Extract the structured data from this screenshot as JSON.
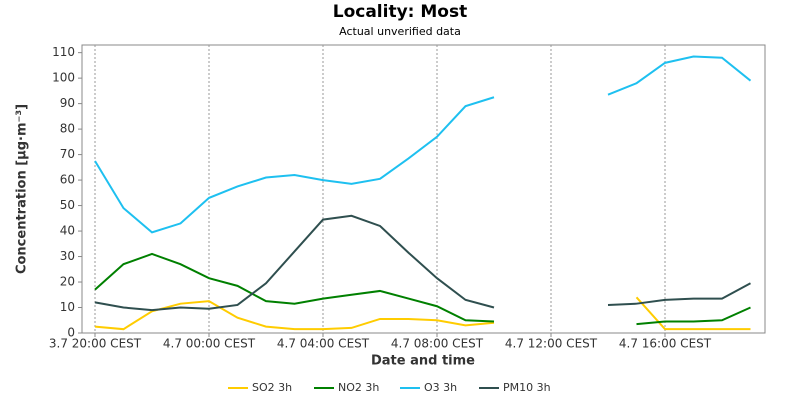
{
  "chart_data": {
    "type": "line",
    "title": "Locality: Most",
    "subtitle": "Actual unverified data",
    "x_label": "Date and time",
    "y_label": "Concentration [µg·m⁻³]",
    "categories": [
      "3.7 20:00 CEST",
      null,
      null,
      null,
      "4.7 00:00 CEST",
      null,
      null,
      null,
      "4.7 04:00 CEST",
      null,
      null,
      null,
      "4.7 08:00 CEST",
      null,
      null,
      null,
      "4.7 12:00 CEST",
      null,
      null,
      null,
      "4.7 16:00 CEST",
      null,
      null,
      null
    ],
    "series": [
      {
        "name": "SO2 3h",
        "color": "#ffcc00",
        "values": [
          2.5,
          1.5,
          8.5,
          11.5,
          12.5,
          6,
          2.5,
          1.5,
          1.5,
          2,
          5.5,
          5.5,
          5,
          3,
          4,
          null,
          null,
          null,
          null,
          14,
          1.5,
          1.5,
          1.5,
          1.5
        ]
      },
      {
        "name": "NO2 3h",
        "color": "#008000",
        "values": [
          17,
          27,
          31,
          27,
          21.5,
          18.5,
          12.5,
          11.5,
          13.5,
          15,
          16.5,
          13.5,
          10.5,
          5,
          4.5,
          null,
          null,
          null,
          null,
          3.5,
          4.5,
          4.5,
          5,
          10
        ]
      },
      {
        "name": "O3 3h",
        "color": "#1ec0f0",
        "values": [
          67.5,
          49,
          39.5,
          43,
          53,
          57.5,
          61,
          62,
          60,
          58.5,
          60.5,
          68.5,
          77,
          89,
          92.5,
          null,
          null,
          null,
          93.5,
          98,
          106,
          108.5,
          108,
          99
        ]
      },
      {
        "name": "PM10 3h",
        "color": "#2f4f4f",
        "values": [
          12,
          10,
          9,
          10,
          9.5,
          11,
          19.5,
          32,
          44.5,
          46,
          42,
          31.5,
          21.5,
          13,
          10,
          null,
          null,
          null,
          11,
          11.5,
          13,
          13.5,
          13.5,
          19.5
        ]
      }
    ],
    "ylim": [
      0,
      113
    ],
    "yticks": [
      0,
      10,
      20,
      30,
      40,
      50,
      60,
      70,
      80,
      90,
      100,
      110
    ],
    "grid": "x",
    "legend": "bottom"
  }
}
